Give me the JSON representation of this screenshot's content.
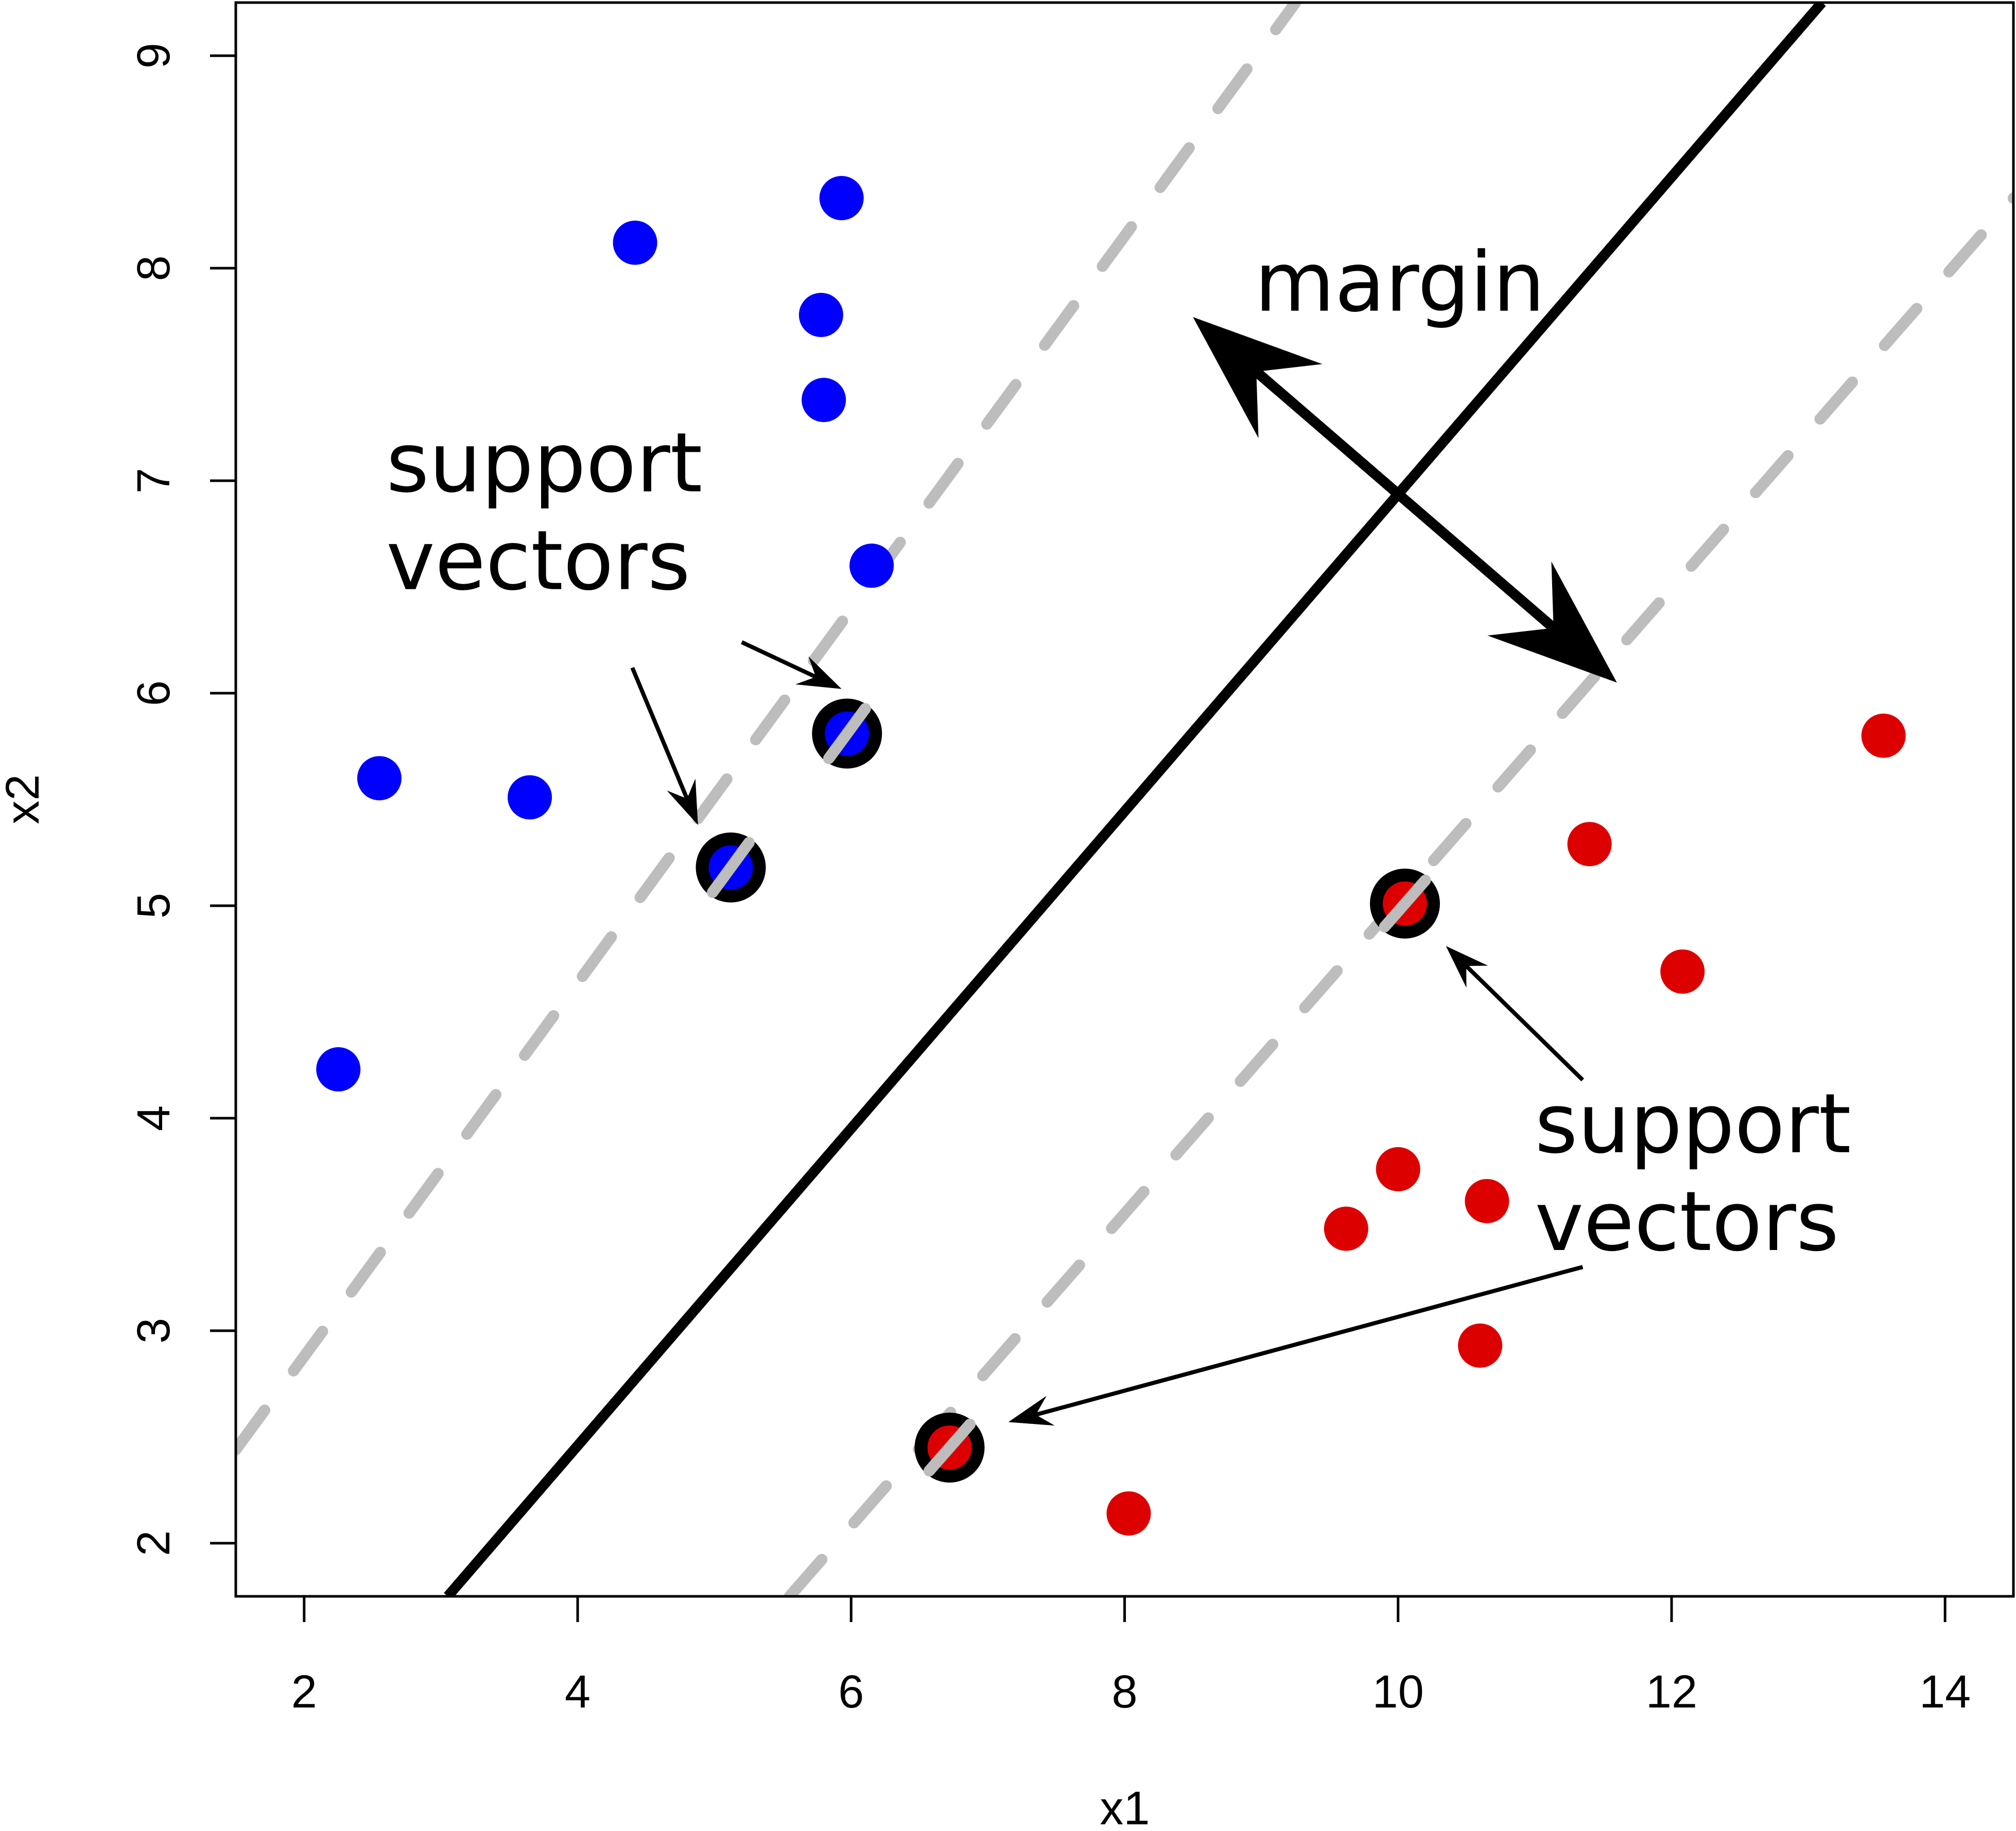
{
  "chart_data": {
    "type": "scatter",
    "title": "",
    "xlabel": "x1",
    "ylabel": "x2",
    "xlim": [
      1.5,
      14.5
    ],
    "ylim": [
      1.75,
      9.25
    ],
    "xticks": [
      2,
      4,
      6,
      8,
      10,
      12,
      14
    ],
    "yticks": [
      2,
      3,
      4,
      5,
      6,
      7,
      8,
      9
    ],
    "grid": false,
    "legend": "none",
    "colors": {
      "class_a": "#0000ff",
      "class_b": "#dd0000",
      "decision": "#000000",
      "margins": "#bdbdbd"
    },
    "series": [
      {
        "color": "#0000ff",
        "points": [
          {
            "x": 4.42,
            "y": 8.12
          },
          {
            "x": 5.93,
            "y": 8.33
          },
          {
            "x": 5.78,
            "y": 7.78
          },
          {
            "x": 5.8,
            "y": 7.38
          },
          {
            "x": 6.15,
            "y": 6.6
          },
          {
            "x": 2.55,
            "y": 5.6
          },
          {
            "x": 3.65,
            "y": 5.51
          },
          {
            "x": 5.97,
            "y": 5.81
          },
          {
            "x": 5.12,
            "y": 5.18
          },
          {
            "x": 2.25,
            "y": 4.23
          }
        ]
      },
      {
        "color": "#dd0000",
        "points": [
          {
            "x": 13.55,
            "y": 5.8
          },
          {
            "x": 11.4,
            "y": 5.29
          },
          {
            "x": 10.05,
            "y": 5.01
          },
          {
            "x": 12.08,
            "y": 4.69
          },
          {
            "x": 10.0,
            "y": 3.76
          },
          {
            "x": 10.65,
            "y": 3.61
          },
          {
            "x": 9.62,
            "y": 3.48
          },
          {
            "x": 10.6,
            "y": 2.93
          },
          {
            "x": 6.72,
            "y": 2.45
          },
          {
            "x": 8.03,
            "y": 2.14
          }
        ]
      }
    ],
    "support_vectors": [
      {
        "x": 5.97,
        "y": 5.81
      },
      {
        "x": 5.12,
        "y": 5.18
      },
      {
        "x": 10.05,
        "y": 5.01
      },
      {
        "x": 6.72,
        "y": 2.45
      }
    ],
    "decision_boundary": {
      "from": [
        3.05,
        1.75
      ],
      "to": [
        13.1,
        9.25
      ]
    },
    "margin_lines": [
      {
        "from": [
          1.5,
          2.44
        ],
        "to": [
          9.25,
          9.25
        ]
      },
      {
        "from": [
          5.55,
          1.75
        ],
        "to": [
          14.5,
          8.33
        ]
      }
    ],
    "margin_arrow": {
      "from": [
        11.6,
        6.05
      ],
      "to": [
        8.5,
        7.77
      ]
    },
    "annotations": [
      {
        "id": "margin",
        "lines": [
          "margin"
        ],
        "x": 8.95,
        "y": 7.8,
        "arrows": []
      },
      {
        "id": "sv-left",
        "lines": [
          "support",
          "vectors"
        ],
        "x": 2.6,
        "y": 6.95,
        "arrows": [
          {
            "from": [
              5.2,
              6.24
            ],
            "to": [
              5.93,
              6.02
            ]
          },
          {
            "from": [
              4.4,
              6.12
            ],
            "to": [
              4.88,
              5.38
            ]
          }
        ]
      },
      {
        "id": "sv-right",
        "lines": [
          "support",
          "vectors"
        ],
        "x": 11.0,
        "y": 3.84,
        "arrows": [
          {
            "from": [
              11.35,
              4.18
            ],
            "to": [
              10.35,
              4.81
            ]
          },
          {
            "from": [
              11.35,
              3.3
            ],
            "to": [
              7.15,
              2.57
            ]
          }
        ]
      }
    ]
  }
}
